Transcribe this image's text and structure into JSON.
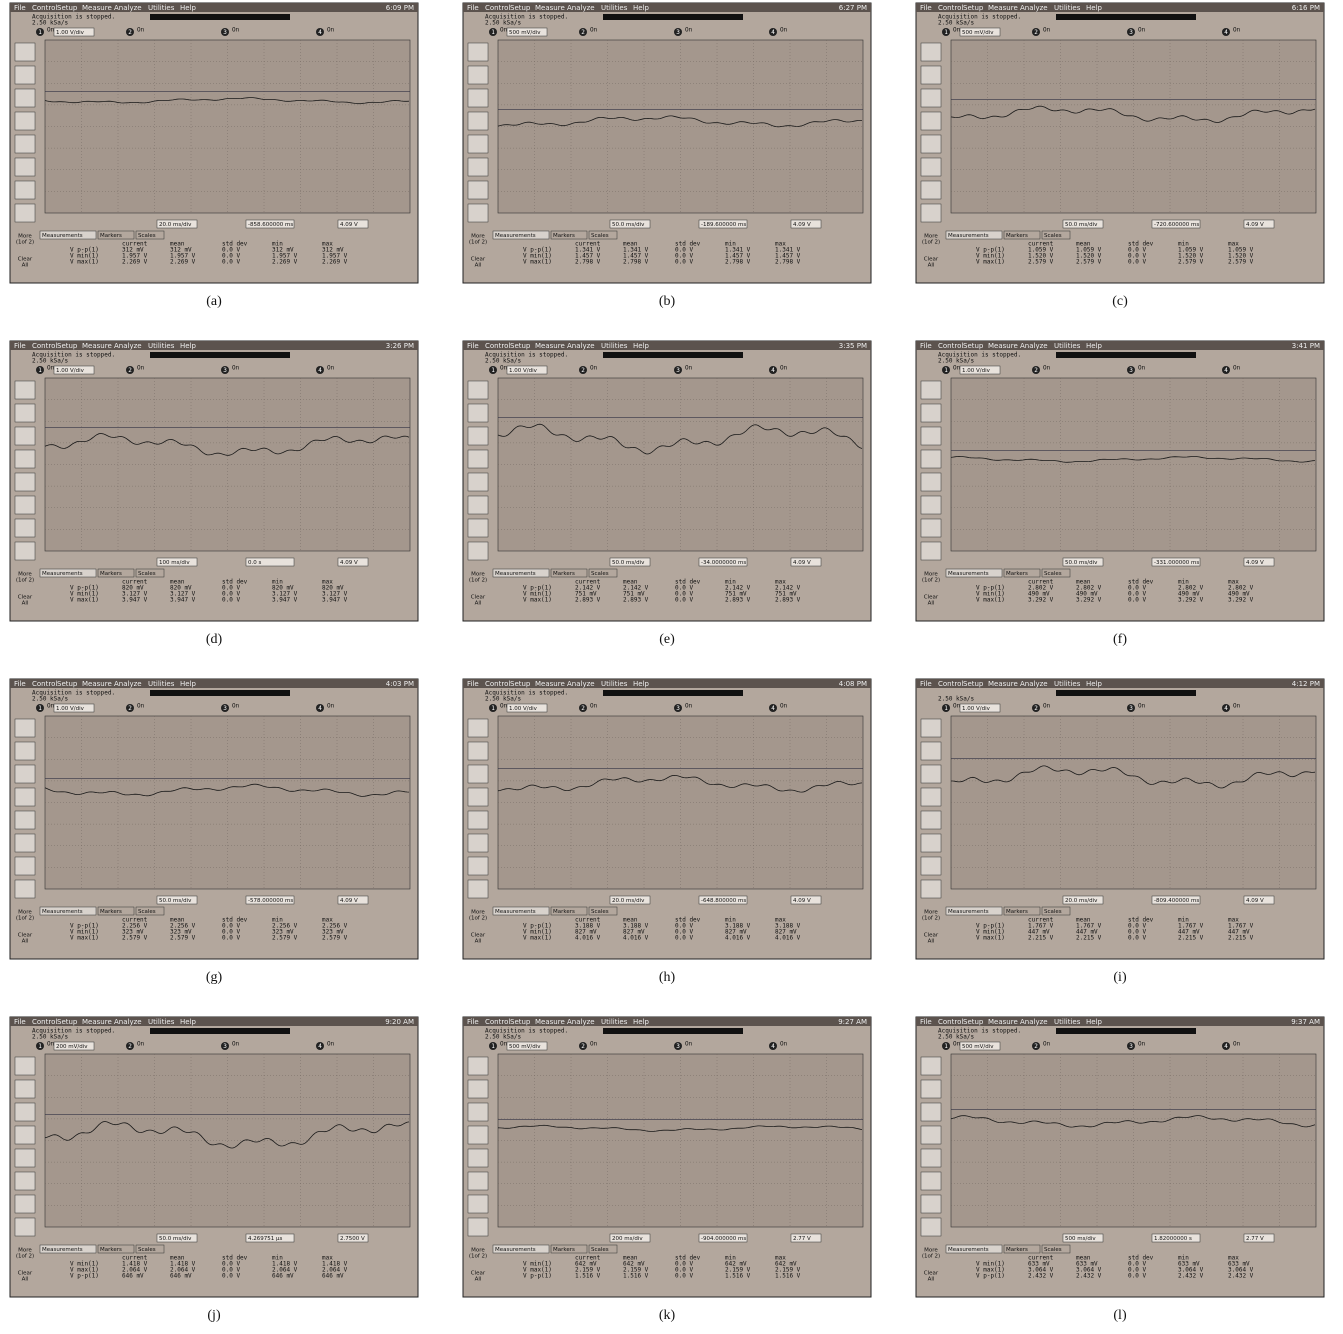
{
  "common": {
    "menu": [
      "File",
      "Control",
      "Setup",
      "Measure",
      "Analyze",
      "Utilities",
      "Help"
    ],
    "channels": [
      "1",
      "2",
      "3",
      "4"
    ],
    "on": "On",
    "more": [
      "More",
      "(1of 2)"
    ],
    "clear": [
      "Clear",
      "All"
    ],
    "tabs": [
      "Measurements",
      "Markers",
      "Scales"
    ],
    "headers": [
      "current",
      "mean",
      "std dev",
      "min",
      "max"
    ]
  },
  "panels": [
    {
      "caption": "(a)",
      "clock": "6:09 PM",
      "status": "Acquisition is stopped.",
      "rate": "2.50 kSa/s",
      "scale": "1.00 V/div",
      "timebase": "20.0 ms/div",
      "position": "-858.600000 ms",
      "trigger": "4.09 V",
      "rows": [
        [
          "V p-p(1)",
          "312 mV",
          "312 mV",
          "0.0 V",
          "312 mV",
          "312 mV"
        ],
        [
          "V min(1)",
          "1.957 V",
          "1.957 V",
          "0.0 V",
          "1.957 V",
          "1.957 V"
        ],
        [
          "V max(1)",
          "2.269 V",
          "2.269 V",
          "0.0 V",
          "2.269 V",
          "2.269 V"
        ]
      ]
    },
    {
      "caption": "(b)",
      "clock": "6:27 PM",
      "status": "Acquisition is stopped.",
      "rate": "2.50 kSa/s",
      "scale": "500 mV/div",
      "timebase": "50.0 ms/div",
      "position": "-189.600000 ms",
      "trigger": "4.09 V",
      "rows": [
        [
          "V p-p(1)",
          "1.341 V",
          "1.341 V",
          "0.0 V",
          "1.341 V",
          "1.341 V"
        ],
        [
          "V min(1)",
          "1.457 V",
          "1.457 V",
          "0.0 V",
          "1.457 V",
          "1.457 V"
        ],
        [
          "V max(1)",
          "2.798 V",
          "2.798 V",
          "0.0 V",
          "2.798 V",
          "2.798 V"
        ]
      ]
    },
    {
      "caption": "(c)",
      "clock": "6:16 PM",
      "status": "Acquisition is stopped.",
      "rate": "2.50 kSa/s",
      "scale": "500 mV/div",
      "timebase": "50.0 ms/div",
      "position": "-720.600000 ms",
      "trigger": "4.09 V",
      "rows": [
        [
          "V p-p(1)",
          "1.059 V",
          "1.059 V",
          "0.0 V",
          "1.059 V",
          "1.059 V"
        ],
        [
          "V min(1)",
          "1.520 V",
          "1.520 V",
          "0.0 V",
          "1.520 V",
          "1.520 V"
        ],
        [
          "V max(1)",
          "2.579 V",
          "2.579 V",
          "0.0 V",
          "2.579 V",
          "2.579 V"
        ]
      ]
    },
    {
      "caption": "(d)",
      "clock": "3:26 PM",
      "status": "Acquisition is stopped.",
      "rate": "2.50 kSa/s",
      "scale": "1.00 V/div",
      "timebase": "100 ms/div",
      "position": "0.0 s",
      "trigger": "4.09 V",
      "rows": [
        [
          "V p-p(1)",
          "820 mV",
          "820 mV",
          "0.0 V",
          "820 mV",
          "820 mV"
        ],
        [
          "V min(1)",
          "3.127 V",
          "3.127 V",
          "0.0 V",
          "3.127 V",
          "3.127 V"
        ],
        [
          "V max(1)",
          "3.947 V",
          "3.947 V",
          "0.0 V",
          "3.947 V",
          "3.947 V"
        ]
      ]
    },
    {
      "caption": "(e)",
      "clock": "3:35 PM",
      "status": "Acquisition is stopped.",
      "rate": "2.50 kSa/s",
      "scale": "1.00 V/div",
      "timebase": "50.0 ms/div",
      "position": "-34.0000000 ms",
      "trigger": "4.09 V",
      "rows": [
        [
          "V p-p(1)",
          "2.142 V",
          "2.142 V",
          "0.0 V",
          "2.142 V",
          "2.142 V"
        ],
        [
          "V min(1)",
          "751 mV",
          "751 mV",
          "0.0 V",
          "751 mV",
          "751 mV"
        ],
        [
          "V max(1)",
          "2.893 V",
          "2.893 V",
          "0.0 V",
          "2.893 V",
          "2.893 V"
        ]
      ]
    },
    {
      "caption": "(f)",
      "clock": "3:41 PM",
      "status": "Acquisition is stopped.",
      "rate": "2.50 kSa/s",
      "scale": "1.00 V/div",
      "timebase": "50.0 ms/div",
      "position": "-331.000000 ms",
      "trigger": "4.09 V",
      "rows": [
        [
          "V p-p(1)",
          "2.802 V",
          "2.802 V",
          "0.0 V",
          "2.802 V",
          "2.802 V"
        ],
        [
          "V min(1)",
          "490 mV",
          "490 mV",
          "0.0 V",
          "490 mV",
          "490 mV"
        ],
        [
          "V max(1)",
          "3.292 V",
          "3.292 V",
          "0.0 V",
          "3.292 V",
          "3.292 V"
        ]
      ]
    },
    {
      "caption": "(g)",
      "clock": "4:03 PM",
      "status": "Acquisition is stopped.",
      "rate": "2.50 kSa/s",
      "scale": "1.00 V/div",
      "timebase": "50.0 ms/div",
      "position": "-578.000000 ms",
      "trigger": "4.09 V",
      "rows": [
        [
          "V p-p(1)",
          "2.256 V",
          "2.256 V",
          "0.0 V",
          "2.256 V",
          "2.256 V"
        ],
        [
          "V min(1)",
          "323 mV",
          "323 mV",
          "0.0 V",
          "323 mV",
          "323 mV"
        ],
        [
          "V max(1)",
          "2.579 V",
          "2.579 V",
          "0.0 V",
          "2.579 V",
          "2.579 V"
        ]
      ]
    },
    {
      "caption": "(h)",
      "clock": "4:08 PM",
      "status": "Acquisition is stopped.",
      "rate": "2.50 kSa/s",
      "scale": "1.00 V/div",
      "timebase": "20.0 ms/div",
      "position": "-648.800000 ms",
      "trigger": "4.09 V",
      "rows": [
        [
          "V p-p(1)",
          "3.188 V",
          "3.188 V",
          "0.0 V",
          "3.188 V",
          "3.188 V"
        ],
        [
          "V min(1)",
          "827 mV",
          "827 mV",
          "0.0 V",
          "827 mV",
          "827 mV"
        ],
        [
          "V max(1)",
          "4.016 V",
          "4.016 V",
          "0.0 V",
          "4.016 V",
          "4.016 V"
        ]
      ]
    },
    {
      "caption": "(i)",
      "clock": "4:12 PM",
      "rate": "2.50 kSa/s",
      "scale": "1.00 V/div",
      "timebase": "20.0 ms/div",
      "position": "-809.400000 ms",
      "trigger": "4.09 V",
      "rows": [
        [
          "V p-p(1)",
          "1.767 V",
          "1.767 V",
          "0.0 V",
          "1.767 V",
          "1.767 V"
        ],
        [
          "V min(1)",
          "447 mV",
          "447 mV",
          "0.0 V",
          "447 mV",
          "447 mV"
        ],
        [
          "V max(1)",
          "2.215 V",
          "2.215 V",
          "0.0 V",
          "2.215 V",
          "2.215 V"
        ]
      ]
    },
    {
      "caption": "(j)",
      "clock": "9:20 AM",
      "status": "Acquisition is stopped.",
      "rate": "2.50 kSa/s",
      "scale": "200 mV/div",
      "timebase": "50.0 ms/div",
      "position": "4.269751 µs",
      "trigger": "2.7500 V",
      "rows": [
        [
          "V min(1)",
          "1.418 V",
          "1.418 V",
          "0.0 V",
          "1.418 V",
          "1.418 V"
        ],
        [
          "V max(1)",
          "2.064 V",
          "2.064 V",
          "0.0 V",
          "2.064 V",
          "2.064 V"
        ],
        [
          "V p-p(1)",
          "646 mV",
          "646 mV",
          "0.0 V",
          "646 mV",
          "646 mV"
        ]
      ]
    },
    {
      "caption": "(k)",
      "clock": "9:27 AM",
      "status": "Acquisition is stopped.",
      "rate": "2.50 kSa/s",
      "scale": "500 mV/div",
      "timebase": "200 ms/div",
      "position": "-904.000000 ms",
      "trigger": "2.77 V",
      "rows": [
        [
          "V min(1)",
          "642 mV",
          "642 mV",
          "0.0 V",
          "642 mV",
          "642 mV"
        ],
        [
          "V max(1)",
          "2.159 V",
          "2.159 V",
          "0.0 V",
          "2.159 V",
          "2.159 V"
        ],
        [
          "V p-p(1)",
          "1.516 V",
          "1.516 V",
          "0.0 V",
          "1.516 V",
          "1.516 V"
        ]
      ]
    },
    {
      "caption": "(l)",
      "clock": "9:37 AM",
      "status": "Acquisition is stopped.",
      "rate": "2.50 kSa/s",
      "scale": "500 mV/div",
      "timebase": "500 ms/div",
      "position": "1.82000000 s",
      "trigger": "2.77 V",
      "rows": [
        [
          "V min(1)",
          "633 mV",
          "633 mV",
          "0.0 V",
          "633 mV",
          "633 mV"
        ],
        [
          "V max(1)",
          "3.064 V",
          "3.064 V",
          "0.0 V",
          "3.064 V",
          "3.064 V"
        ],
        [
          "V p-p(1)",
          "2.432 V",
          "2.432 V",
          "0.0 V",
          "2.432 V",
          "2.432 V"
        ]
      ]
    }
  ]
}
